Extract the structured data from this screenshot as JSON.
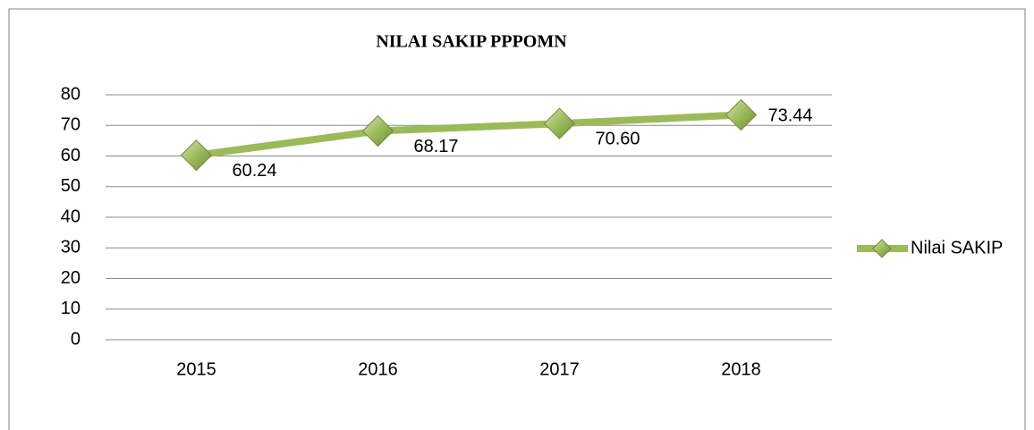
{
  "chart_data": {
    "type": "line",
    "title": "NILAI SAKIP PPPOMN",
    "categories": [
      "2015",
      "2016",
      "2017",
      "2018"
    ],
    "series": [
      {
        "name": "Nilai SAKIP",
        "color": "#9bbb59",
        "values": [
          60.24,
          68.17,
          70.6,
          73.44
        ],
        "value_labels": [
          "60.24",
          "68.17",
          "70.60",
          "73.44"
        ]
      }
    ],
    "ylim": [
      0,
      80
    ],
    "yticks": [
      0,
      10,
      20,
      30,
      40,
      50,
      60,
      70,
      80
    ],
    "grid": true,
    "legend": "right"
  }
}
